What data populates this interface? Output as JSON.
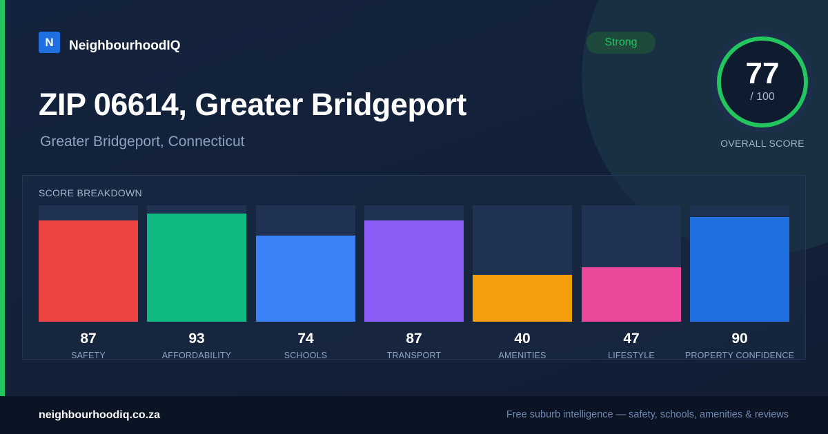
{
  "brand": {
    "logo_letter": "N",
    "name": "NeighbourhoodIQ"
  },
  "header": {
    "title": "ZIP 06614, Greater Bridgeport",
    "subtitle": "Greater Bridgeport, Connecticut",
    "badge": "Strong"
  },
  "overall": {
    "value": "77",
    "max_label": "/ 100",
    "label": "OVERALL SCORE",
    "score": 77,
    "max": 100
  },
  "breakdown": {
    "title": "SCORE BREAKDOWN",
    "items": [
      {
        "label": "SAFETY",
        "value": "87",
        "score": 87,
        "color": "#ef4444"
      },
      {
        "label": "AFFORDABILITY",
        "value": "93",
        "score": 93,
        "color": "#10b981"
      },
      {
        "label": "SCHOOLS",
        "value": "74",
        "score": 74,
        "color": "#3b82f6"
      },
      {
        "label": "TRANSPORT",
        "value": "87",
        "score": 87,
        "color": "#8b5cf6"
      },
      {
        "label": "AMENITIES",
        "value": "40",
        "score": 40,
        "color": "#f59e0b"
      },
      {
        "label": "LIFESTYLE",
        "value": "47",
        "score": 47,
        "color": "#ec4899"
      },
      {
        "label": "PROPERTY CONFIDENCE",
        "value": "90",
        "score": 90,
        "color": "#1f6fe0"
      }
    ]
  },
  "footer": {
    "site": "neighbourhoodiq.co.za",
    "tagline": "Free suburb intelligence — safety, schools, amenities & reviews"
  },
  "colors": {
    "accent": "#22c55e",
    "brand": "#1f6fe0"
  }
}
